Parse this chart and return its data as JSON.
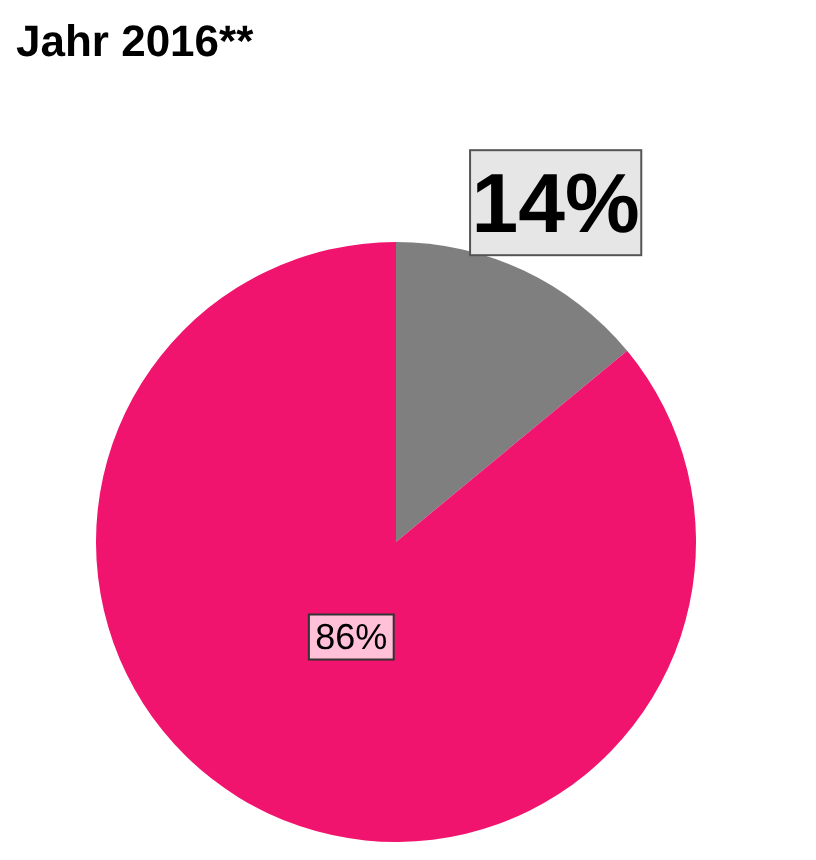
{
  "chart_data": {
    "type": "pie",
    "title": "Jahr 2016**",
    "categories": [
      null,
      null
    ],
    "values": [
      14,
      86
    ],
    "colors": [
      "#7f7f7f",
      "#f0146e"
    ],
    "value_labels": [
      "14%",
      "86%"
    ]
  }
}
